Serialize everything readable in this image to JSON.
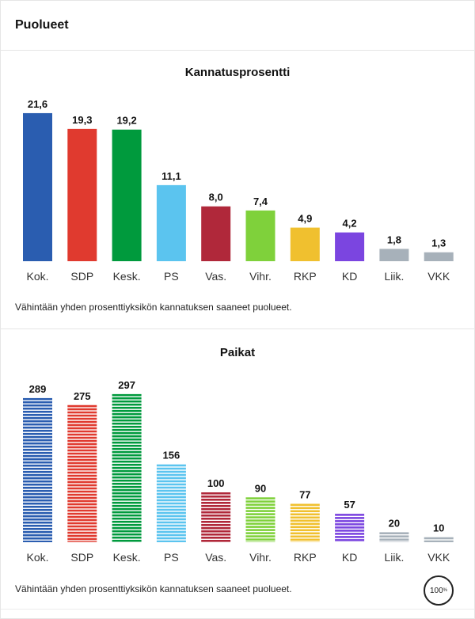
{
  "header": {
    "title": "Puolueet"
  },
  "chart_data": [
    {
      "type": "bar",
      "title": "Kannatusprosentti",
      "categories": [
        "Kok.",
        "SDP",
        "Kesk.",
        "PS",
        "Vas.",
        "Vihr.",
        "RKP",
        "KD",
        "Liik.",
        "VKK"
      ],
      "values": [
        21.6,
        19.3,
        19.2,
        11.1,
        8.0,
        7.4,
        4.9,
        4.2,
        1.8,
        1.3
      ],
      "value_labels": [
        "21,6",
        "19,3",
        "19,2",
        "11,1",
        "8,0",
        "7,4",
        "4,9",
        "4,2",
        "1,8",
        "1,3"
      ],
      "colors": [
        "#2a5db0",
        "#e03a2f",
        "#009a3d",
        "#5bc4ef",
        "#b0283a",
        "#7fd13b",
        "#f0c02f",
        "#7b45e0",
        "#a7b1ba",
        "#a7b1ba"
      ],
      "xlabel": "",
      "ylabel": "",
      "grid": false,
      "note": "Vähintään yhden prosenttiyksikön kannatuksen saaneet puolueet."
    },
    {
      "type": "bar",
      "style": "striped",
      "title": "Paikat",
      "categories": [
        "Kok.",
        "SDP",
        "Kesk.",
        "PS",
        "Vas.",
        "Vihr.",
        "RKP",
        "KD",
        "Liik.",
        "VKK"
      ],
      "values": [
        289,
        275,
        297,
        156,
        100,
        90,
        77,
        57,
        20,
        10
      ],
      "value_labels": [
        "289",
        "275",
        "297",
        "156",
        "100",
        "90",
        "77",
        "57",
        "20",
        "10"
      ],
      "colors": [
        "#2a5db0",
        "#e03a2f",
        "#009a3d",
        "#5bc4ef",
        "#b0283a",
        "#7fd13b",
        "#f0c02f",
        "#7b45e0",
        "#a7b1ba",
        "#a7b1ba"
      ],
      "xlabel": "",
      "ylabel": "",
      "grid": false,
      "note": "Vähintään yhden prosenttiyksikön kannatuksen saaneet puolueet."
    }
  ],
  "progress": {
    "value": "100",
    "unit": "%"
  }
}
